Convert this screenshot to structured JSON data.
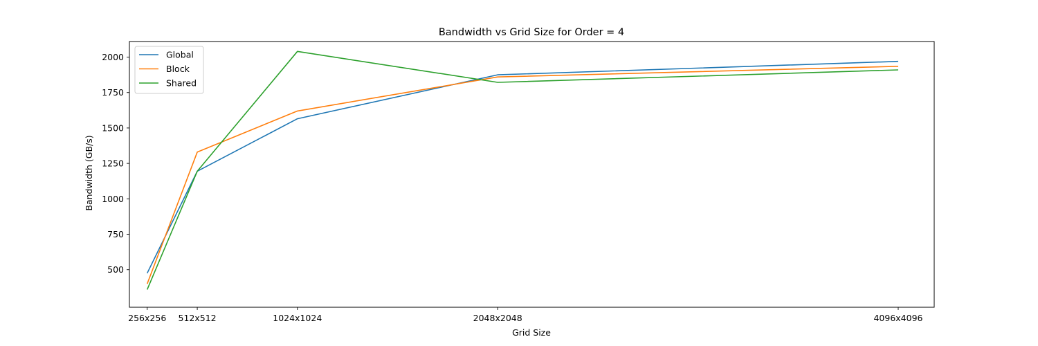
{
  "chart_data": {
    "type": "line",
    "title": "Bandwidth vs Grid Size for Order = 4",
    "xlabel": "Grid Size",
    "ylabel": "Bandwidth (GB/s)",
    "x": [
      256,
      512,
      1024,
      2048,
      4096
    ],
    "x_tick_labels": [
      "256x256",
      "512x512",
      "1024x1024",
      "2048x2048",
      "4096x4096"
    ],
    "xlim": [
      165,
      4280
    ],
    "ylim": [
      235,
      2110
    ],
    "y_ticks": [
      500,
      750,
      1000,
      1250,
      1500,
      1750,
      2000
    ],
    "legend_position": "top-left",
    "grid": false,
    "series": [
      {
        "name": "Global",
        "color": "#1f77b4",
        "values": [
          475,
          1195,
          1565,
          1875,
          1970
        ]
      },
      {
        "name": "Block",
        "color": "#ff7f0e",
        "values": [
          400,
          1330,
          1620,
          1860,
          1935
        ]
      },
      {
        "name": "Shared",
        "color": "#2ca02c",
        "values": [
          360,
          1195,
          2040,
          1822,
          1910
        ]
      }
    ]
  }
}
